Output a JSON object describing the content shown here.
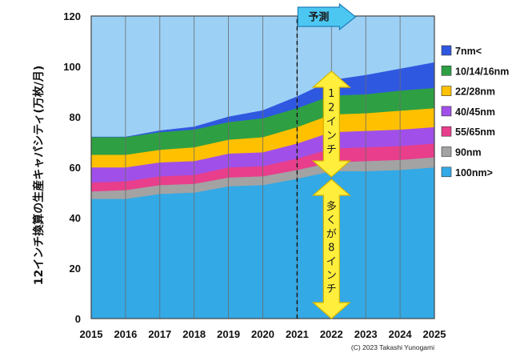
{
  "chart_data": {
    "type": "area",
    "stacked": true,
    "ylabel": "12インチ換算の生産キャパシティ(万枚/月)",
    "ylim": [
      0,
      120
    ],
    "yticks": [
      0,
      20,
      40,
      60,
      80,
      100,
      120
    ],
    "x": [
      "2015",
      "2016",
      "2017",
      "2018",
      "2019",
      "2020",
      "2021",
      "2022",
      "2023",
      "2024",
      "2025"
    ],
    "grid": "vertical",
    "legend_position": "right",
    "series": [
      {
        "name": "100nm>",
        "color": "#33a9e6",
        "values": [
          47.5,
          47.5,
          49.5,
          50.0,
          52.5,
          53.0,
          55.5,
          58.5,
          58.5,
          59.0,
          60.0
        ]
      },
      {
        "name": "90nm",
        "color": "#a3a3a3",
        "values": [
          3.0,
          3.5,
          3.5,
          3.5,
          3.5,
          3.5,
          3.5,
          3.5,
          4.0,
          4.0,
          4.0
        ]
      },
      {
        "name": "55/65nm",
        "color": "#e83e8c",
        "values": [
          3.5,
          3.5,
          3.5,
          3.5,
          4.0,
          4.0,
          4.5,
          5.5,
          5.5,
          5.5,
          5.5
        ]
      },
      {
        "name": "40/45nm",
        "color": "#a050e8",
        "values": [
          6.0,
          5.5,
          5.5,
          5.5,
          5.5,
          5.5,
          6.0,
          6.5,
          6.5,
          6.5,
          6.5
        ]
      },
      {
        "name": "22/28nm",
        "color": "#ffc000",
        "values": [
          5.0,
          5.0,
          5.0,
          5.5,
          5.5,
          6.0,
          6.5,
          7.0,
          7.0,
          7.5,
          7.5
        ]
      },
      {
        "name": "10/14/16nm",
        "color": "#2ea043",
        "values": [
          7.0,
          7.0,
          7.0,
          7.0,
          7.0,
          7.5,
          7.5,
          7.5,
          7.5,
          8.0,
          8.0
        ]
      },
      {
        "name": "7nm<",
        "color": "#2f58e0",
        "values": [
          0,
          0,
          0.5,
          1.0,
          2.0,
          3.0,
          4.5,
          6.0,
          7.5,
          8.5,
          10.0
        ]
      }
    ],
    "annotations": {
      "forecast_label": "予測",
      "forecast_start": "2021",
      "arrow_upper_label": "12インチ",
      "arrow_lower_label": "多くが8インチ"
    }
  },
  "copyright": "(C) 2023 Takashi Yunogami",
  "colors": {
    "plot_background": "#9dd0f5",
    "arrow_fill": "#ffee3c",
    "arrow_stroke": "#d6b400",
    "forecast_box": "#4cc7f2"
  }
}
